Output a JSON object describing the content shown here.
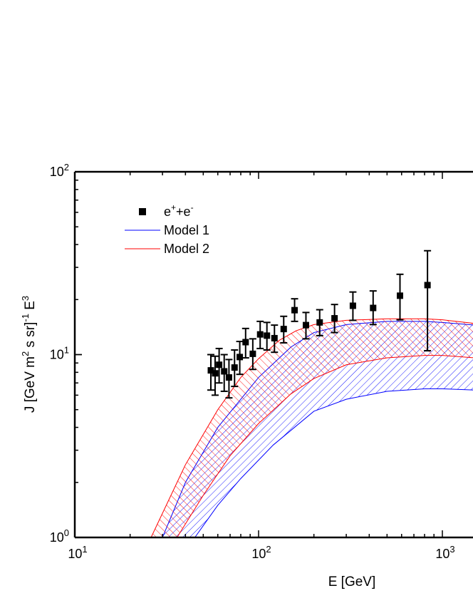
{
  "chart_data": {
    "type": "scatter",
    "xscale": "log",
    "yscale": "log",
    "xlim": [
      10,
      1500
    ],
    "ylim": [
      1,
      100
    ],
    "xlabel": "E [GeV]",
    "ylabel": "J [GeV m² s sr]⁻¹ E³",
    "x_ticks": [
      {
        "value": 10,
        "base": "10",
        "exp": "1"
      },
      {
        "value": 100,
        "base": "10",
        "exp": "2"
      },
      {
        "value": 1000,
        "base": "10",
        "exp": "3"
      }
    ],
    "y_ticks": [
      {
        "value": 1,
        "base": "10",
        "exp": "0"
      },
      {
        "value": 10,
        "base": "10",
        "exp": "1"
      },
      {
        "value": 100,
        "base": "10",
        "exp": "2"
      }
    ],
    "legend": {
      "position": "top-left",
      "entries": [
        {
          "label": "e⁺+e⁻",
          "marker": "square",
          "color": "#000000"
        },
        {
          "label": "Model 1",
          "marker": "line",
          "color": "#0000ff"
        },
        {
          "label": "Model 2",
          "marker": "line",
          "color": "#ff0000"
        }
      ]
    },
    "series": [
      {
        "name": "e⁺+e⁻",
        "color": "#000000",
        "points": [
          {
            "x": 55,
            "y": 8.2,
            "lo": 6.4,
            "hi": 10.0
          },
          {
            "x": 58,
            "y": 7.9,
            "lo": 6.0,
            "hi": 9.8
          },
          {
            "x": 61,
            "y": 8.8,
            "lo": 7.0,
            "hi": 10.8
          },
          {
            "x": 65,
            "y": 8.1,
            "lo": 6.3,
            "hi": 10.0
          },
          {
            "x": 69,
            "y": 7.5,
            "lo": 5.8,
            "hi": 9.4
          },
          {
            "x": 74,
            "y": 8.5,
            "lo": 6.7,
            "hi": 10.6
          },
          {
            "x": 79,
            "y": 9.7,
            "lo": 7.8,
            "hi": 11.8
          },
          {
            "x": 85,
            "y": 11.7,
            "lo": 9.6,
            "hi": 13.9
          },
          {
            "x": 93,
            "y": 10.1,
            "lo": 8.3,
            "hi": 12.2
          },
          {
            "x": 102,
            "y": 12.9,
            "lo": 10.8,
            "hi": 15.2
          },
          {
            "x": 111,
            "y": 12.7,
            "lo": 10.6,
            "hi": 15.0
          },
          {
            "x": 122,
            "y": 12.3,
            "lo": 10.3,
            "hi": 14.5
          },
          {
            "x": 137,
            "y": 13.8,
            "lo": 11.6,
            "hi": 16.2
          },
          {
            "x": 157,
            "y": 17.5,
            "lo": 15.2,
            "hi": 20.2
          },
          {
            "x": 181,
            "y": 14.5,
            "lo": 12.2,
            "hi": 17.0
          },
          {
            "x": 215,
            "y": 15.0,
            "lo": 12.7,
            "hi": 17.6
          },
          {
            "x": 259,
            "y": 15.8,
            "lo": 13.2,
            "hi": 18.8
          },
          {
            "x": 326,
            "y": 18.5,
            "lo": 15.4,
            "hi": 22.0
          },
          {
            "x": 420,
            "y": 18.0,
            "lo": 14.6,
            "hi": 22.3
          },
          {
            "x": 588,
            "y": 21.0,
            "lo": 15.5,
            "hi": 27.5
          },
          {
            "x": 830,
            "y": 24.0,
            "lo": 10.5,
            "hi": 37.0
          }
        ]
      },
      {
        "name": "Model 1",
        "color": "#0000ff",
        "band_upper": [
          [
            30,
            1.0
          ],
          [
            40,
            2.0
          ],
          [
            60,
            4.0
          ],
          [
            100,
            7.5
          ],
          [
            150,
            11.0
          ],
          [
            200,
            13.2
          ],
          [
            300,
            14.6
          ],
          [
            500,
            15.2
          ],
          [
            800,
            15.2
          ],
          [
            1000,
            15.0
          ],
          [
            1500,
            14.5
          ]
        ],
        "band_lower": [
          [
            45,
            1.0
          ],
          [
            60,
            1.5
          ],
          [
            80,
            2.1
          ],
          [
            120,
            3.2
          ],
          [
            200,
            4.9
          ],
          [
            300,
            5.7
          ],
          [
            500,
            6.3
          ],
          [
            800,
            6.5
          ],
          [
            1000,
            6.5
          ],
          [
            1500,
            6.4
          ]
        ]
      },
      {
        "name": "Model 2",
        "color": "#ff0000",
        "band_upper": [
          [
            26,
            1.0
          ],
          [
            40,
            2.5
          ],
          [
            60,
            5.0
          ],
          [
            80,
            7.5
          ],
          [
            100,
            9.5
          ],
          [
            130,
            12.0
          ],
          [
            160,
            13.5
          ],
          [
            200,
            14.6
          ],
          [
            300,
            15.4
          ],
          [
            500,
            15.7
          ],
          [
            800,
            15.7
          ],
          [
            1000,
            15.5
          ],
          [
            1500,
            14.8
          ]
        ],
        "band_lower": [
          [
            36,
            1.0
          ],
          [
            50,
            1.7
          ],
          [
            70,
            2.8
          ],
          [
            100,
            4.2
          ],
          [
            150,
            6.1
          ],
          [
            200,
            7.4
          ],
          [
            300,
            8.8
          ],
          [
            500,
            9.6
          ],
          [
            800,
            9.9
          ],
          [
            1000,
            9.9
          ],
          [
            1500,
            9.6
          ]
        ]
      }
    ]
  }
}
